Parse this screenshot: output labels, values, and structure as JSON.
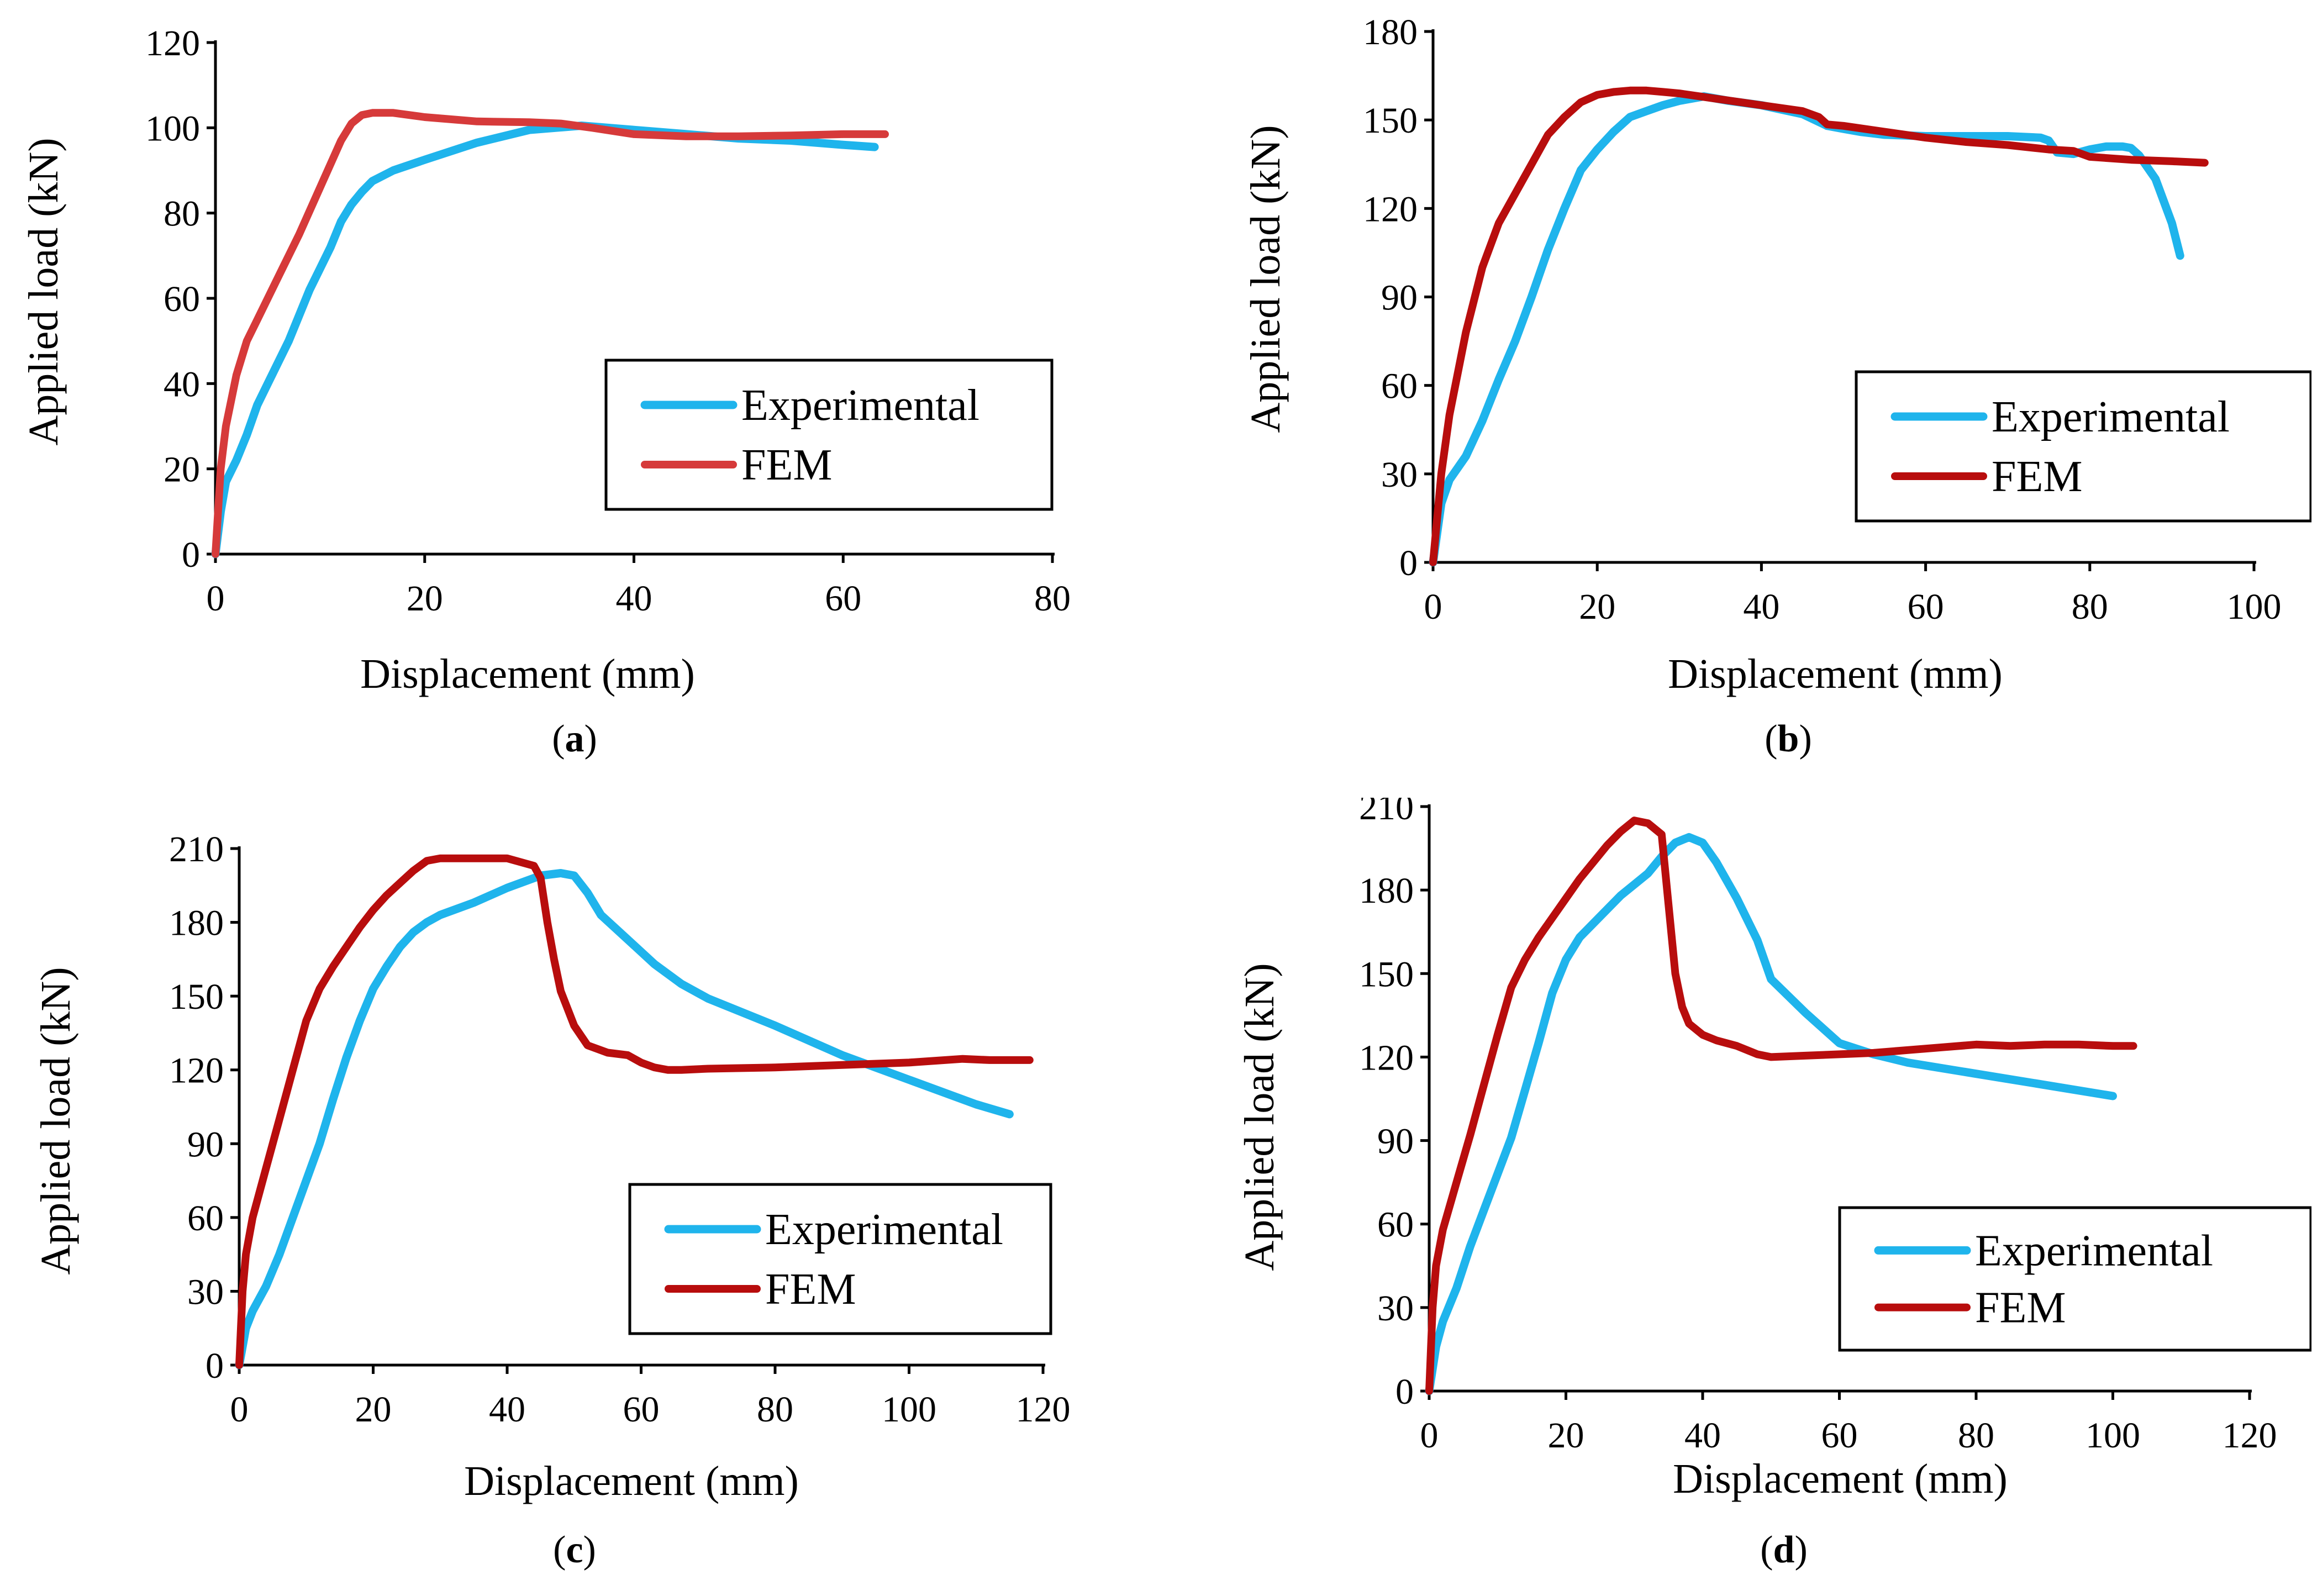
{
  "colors": {
    "experimental": "#1fb4ec",
    "fem_a": "#d63a3a",
    "fem": "#b80d0d"
  },
  "chart_data": [
    {
      "type": "line",
      "caption": "a",
      "xlabel": "Displacement (mm)",
      "ylabel": "Applied load (kN)",
      "xlim": [
        0,
        80
      ],
      "ylim": [
        0,
        120
      ],
      "xticks": [
        0,
        20,
        40,
        60,
        80
      ],
      "yticks": [
        0,
        20,
        40,
        60,
        80,
        100,
        120
      ],
      "legend": [
        "Experimental",
        "FEM"
      ],
      "series": [
        {
          "name": "Experimental",
          "x": [
            0,
            0.5,
            1,
            2,
            3,
            4,
            5,
            6,
            7,
            8,
            9,
            10,
            11,
            12,
            13,
            14,
            15,
            17,
            20,
            25,
            30,
            35,
            40,
            45,
            50,
            55,
            60,
            63
          ],
          "y": [
            0,
            10,
            17,
            22,
            28,
            35,
            40,
            45,
            50,
            56,
            62,
            67,
            72,
            78,
            82,
            85,
            87.5,
            90,
            92.5,
            96.5,
            99.5,
            100.5,
            99.5,
            98.5,
            97.5,
            97,
            96,
            95.5
          ]
        },
        {
          "name": "FEM",
          "x": [
            0,
            0.5,
            1,
            2,
            3,
            4,
            6,
            8,
            10,
            12,
            13,
            14,
            15,
            17,
            20,
            25,
            30,
            33,
            36,
            40,
            45,
            50,
            55,
            60,
            64
          ],
          "y": [
            0,
            20,
            30,
            42,
            50,
            55,
            65,
            75,
            86,
            97,
            101,
            103,
            103.5,
            103.5,
            102.5,
            101.5,
            101.3,
            101,
            100,
            98.5,
            98,
            98,
            98.2,
            98.5,
            98.5
          ]
        }
      ]
    },
    {
      "type": "line",
      "caption": "b",
      "xlabel": "Displacement (mm)",
      "ylabel": "Applied load (kN)",
      "xlim": [
        0,
        100
      ],
      "ylim": [
        0,
        180
      ],
      "xticks": [
        0,
        20,
        40,
        60,
        80,
        100
      ],
      "yticks": [
        0,
        30,
        60,
        90,
        120,
        150,
        180
      ],
      "legend": [
        "Experimental",
        "FEM"
      ],
      "series": [
        {
          "name": "Experimental",
          "x": [
            0,
            1,
            2,
            4,
            6,
            8,
            10,
            12,
            14,
            16,
            18,
            20,
            22,
            24,
            26,
            28,
            30,
            33,
            36,
            40,
            45,
            48,
            50,
            52,
            55,
            60,
            65,
            70,
            74,
            75,
            76,
            78,
            80,
            82,
            84,
            85,
            86,
            88,
            90,
            91
          ],
          "y": [
            0,
            20,
            28,
            36,
            48,
            62,
            75,
            90,
            106,
            120,
            133,
            140,
            146,
            151,
            153,
            155,
            156.5,
            158,
            156.5,
            155,
            152,
            148,
            147,
            146,
            145,
            144.5,
            144.5,
            144.5,
            144,
            143,
            139,
            138.5,
            140,
            141,
            141,
            140.5,
            138,
            130,
            115,
            104
          ]
        },
        {
          "name": "FEM",
          "x": [
            0,
            1,
            2,
            4,
            6,
            8,
            10,
            12,
            14,
            16,
            18,
            20,
            22,
            24,
            26,
            28,
            30,
            35,
            40,
            45,
            47,
            48,
            50,
            55,
            60,
            65,
            70,
            75,
            78,
            80,
            85,
            90,
            94
          ],
          "y": [
            0,
            30,
            50,
            78,
            100,
            115,
            125,
            135,
            145,
            151,
            156,
            158.5,
            159.5,
            160,
            160,
            159.5,
            159,
            157,
            155,
            153,
            151,
            148.5,
            148,
            146,
            144,
            142.5,
            141.5,
            140,
            139.5,
            137.5,
            136.5,
            136,
            135.5
          ]
        }
      ]
    },
    {
      "type": "line",
      "caption": "c",
      "xlabel": "Displacement (mm)",
      "ylabel": "Applied load (kN)",
      "xlim": [
        0,
        120
      ],
      "ylim": [
        0,
        210
      ],
      "xticks": [
        0,
        20,
        40,
        60,
        80,
        100,
        120
      ],
      "yticks": [
        0,
        30,
        60,
        90,
        120,
        150,
        180,
        210
      ],
      "legend": [
        "Experimental",
        "FEM"
      ],
      "series": [
        {
          "name": "Experimental",
          "x": [
            0,
            1,
            2,
            4,
            6,
            8,
            10,
            12,
            14,
            16,
            18,
            20,
            22,
            24,
            26,
            28,
            30,
            35,
            40,
            45,
            48,
            50,
            52,
            54,
            58,
            62,
            66,
            70,
            80,
            90,
            100,
            110,
            115
          ],
          "y": [
            0,
            15,
            22,
            32,
            45,
            60,
            75,
            90,
            108,
            125,
            140,
            153,
            162,
            170,
            176,
            180,
            183,
            188,
            194,
            199,
            200,
            199,
            192,
            183,
            173,
            163,
            155,
            149,
            138,
            126,
            116,
            106,
            102
          ]
        },
        {
          "name": "FEM",
          "x": [
            0,
            0.5,
            1,
            2,
            4,
            6,
            8,
            10,
            12,
            14,
            16,
            18,
            20,
            22,
            24,
            26,
            28,
            30,
            35,
            40,
            44,
            45,
            46,
            47,
            48,
            50,
            52,
            55,
            58,
            60,
            62,
            64,
            66,
            70,
            80,
            90,
            100,
            108,
            112,
            118
          ],
          "y": [
            0,
            30,
            45,
            60,
            80,
            100,
            120,
            140,
            153,
            162,
            170,
            178,
            185,
            191,
            196,
            201,
            205,
            206,
            206,
            206,
            203,
            198,
            180,
            165,
            152,
            138,
            130,
            127,
            126,
            123,
            121,
            120,
            120,
            120.5,
            121,
            122,
            123,
            124.5,
            124,
            124
          ]
        }
      ]
    },
    {
      "type": "line",
      "caption": "d",
      "xlabel": "Displacement (mm)",
      "ylabel": "Applied load (kN)",
      "xlim": [
        0,
        120
      ],
      "ylim": [
        0,
        210
      ],
      "xticks": [
        0,
        20,
        40,
        60,
        80,
        100,
        120
      ],
      "yticks": [
        0,
        30,
        60,
        90,
        120,
        150,
        180,
        210
      ],
      "legend": [
        "Experimental",
        "FEM"
      ],
      "series": [
        {
          "name": "Experimental",
          "x": [
            0,
            1,
            2,
            4,
            6,
            8,
            10,
            12,
            14,
            16,
            18,
            20,
            22,
            24,
            26,
            28,
            30,
            32,
            34,
            36,
            38,
            40,
            42,
            45,
            48,
            50,
            55,
            60,
            65,
            70,
            80,
            90,
            100
          ],
          "y": [
            0,
            16,
            25,
            37,
            52,
            65,
            78,
            91,
            108,
            125,
            143,
            155,
            163,
            168,
            173,
            178,
            182,
            186,
            192,
            197,
            199,
            197,
            190,
            177,
            162,
            148,
            136,
            125,
            121,
            118,
            114,
            110,
            106
          ]
        },
        {
          "name": "FEM",
          "x": [
            0,
            0.5,
            1,
            2,
            4,
            6,
            8,
            10,
            12,
            14,
            16,
            18,
            20,
            22,
            24,
            26,
            28,
            30,
            32,
            34,
            35,
            36,
            37,
            38,
            40,
            42,
            45,
            48,
            50,
            55,
            60,
            65,
            70,
            75,
            80,
            85,
            90,
            95,
            100,
            103
          ],
          "y": [
            0,
            30,
            45,
            58,
            75,
            92,
            110,
            128,
            145,
            155,
            163,
            170,
            177,
            184,
            190,
            196,
            201,
            205,
            204,
            200,
            175,
            150,
            138,
            132,
            128,
            126,
            124,
            121,
            120,
            120.5,
            121,
            121.5,
            122.5,
            123.5,
            124.5,
            124,
            124.5,
            124.5,
            124,
            124
          ]
        }
      ]
    }
  ]
}
